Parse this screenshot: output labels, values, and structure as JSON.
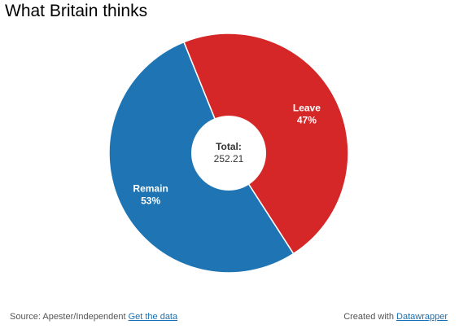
{
  "title": "What Britain thinks",
  "colors": {
    "remain": "#1f74b3",
    "leave": "#d62728"
  },
  "chart_data": {
    "type": "pie",
    "title": "What Britain thinks",
    "donut": true,
    "slices": [
      {
        "label": "Leave",
        "value": 47,
        "display": "47%",
        "color": "#d62728"
      },
      {
        "label": "Remain",
        "value": 53,
        "display": "53%",
        "color": "#1f74b3"
      }
    ],
    "center": {
      "label": "Total:",
      "value": "252.21"
    }
  },
  "footer": {
    "source_prefix": "Source: Apester/Independent",
    "get_data_link": "Get the data",
    "created_prefix": "Created with",
    "datawrapper_link": "Datawrapper"
  }
}
